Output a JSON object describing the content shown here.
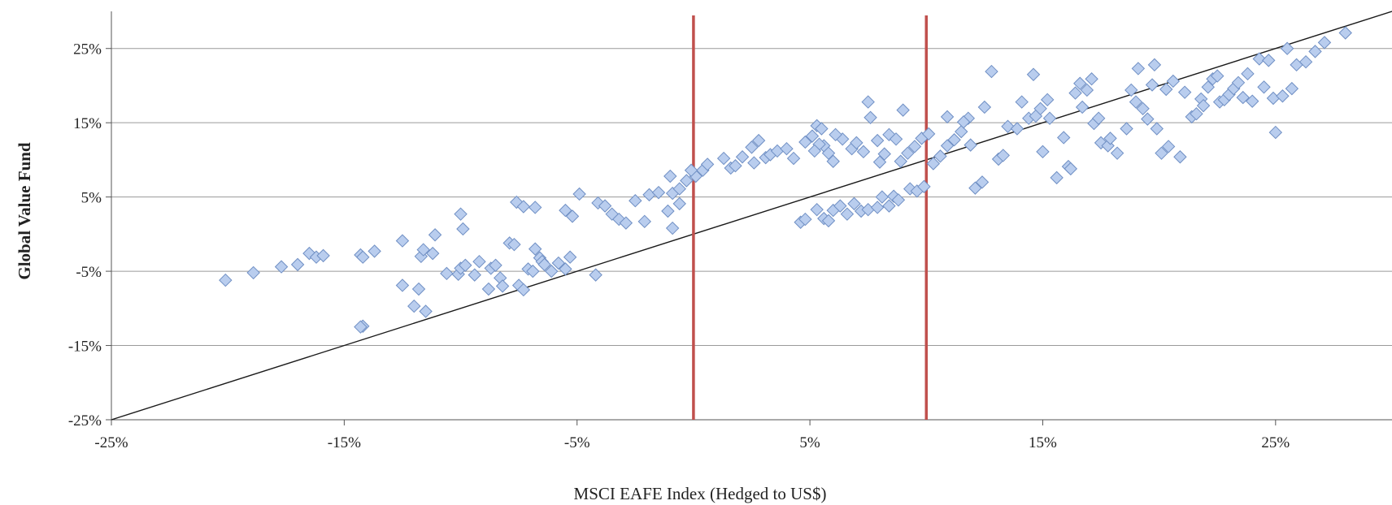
{
  "chart_data": {
    "type": "scatter",
    "xlabel": "MSCI EAFE Index (Hedged to US$)",
    "ylabel": "Global Value Fund",
    "xlim": [
      -25,
      30
    ],
    "ylim": [
      -25,
      30
    ],
    "grid": "horizontal",
    "x_ticks": [
      -25,
      -15,
      -5,
      5,
      15,
      25
    ],
    "x_tick_labels": [
      "-25%",
      "-15%",
      "-5%",
      "5%",
      "15%",
      "25%"
    ],
    "y_ticks": [
      -25,
      -15,
      -5,
      5,
      15,
      25
    ],
    "y_tick_labels": [
      "-25%",
      "-15%",
      "-5%",
      "5%",
      "15%",
      "25%"
    ],
    "colors": {
      "marker_fill": "#b9cdee",
      "marker_stroke": "#6f8fc4",
      "vertical_line": "#c0504d",
      "reference_line": "#1a1a1a",
      "grid": "#9a9a9a"
    },
    "reference_line": {
      "x": [
        -25,
        30
      ],
      "y": [
        -25,
        30
      ]
    },
    "vertical_lines": [
      0,
      10
    ],
    "points": [
      [
        -20.1,
        -6.2
      ],
      [
        -18.9,
        -5.2
      ],
      [
        -17.7,
        -4.4
      ],
      [
        -17.0,
        -4.1
      ],
      [
        -16.5,
        -2.6
      ],
      [
        -16.2,
        -3.1
      ],
      [
        -15.9,
        -2.9
      ],
      [
        -14.3,
        -2.8
      ],
      [
        -14.2,
        -3.1
      ],
      [
        -13.7,
        -2.3
      ],
      [
        -14.2,
        -12.4
      ],
      [
        -14.3,
        -12.5
      ],
      [
        -12.5,
        -0.9
      ],
      [
        -12.5,
        -6.9
      ],
      [
        -12.0,
        -9.7
      ],
      [
        -11.8,
        -7.4
      ],
      [
        -11.7,
        -3.0
      ],
      [
        -11.6,
        -2.1
      ],
      [
        -11.5,
        -10.4
      ],
      [
        -11.2,
        -2.6
      ],
      [
        -11.1,
        -0.1
      ],
      [
        -10.6,
        -5.3
      ],
      [
        -10.1,
        -5.4
      ],
      [
        -10.0,
        -4.6
      ],
      [
        -9.8,
        -4.2
      ],
      [
        -10.0,
        2.7
      ],
      [
        -9.9,
        0.7
      ],
      [
        -9.4,
        -5.5
      ],
      [
        -9.2,
        -3.7
      ],
      [
        -8.8,
        -7.4
      ],
      [
        -8.7,
        -4.6
      ],
      [
        -8.5,
        -4.2
      ],
      [
        -8.3,
        -5.9
      ],
      [
        -8.2,
        -7.0
      ],
      [
        -7.9,
        -1.2
      ],
      [
        -7.7,
        -1.4
      ],
      [
        -7.5,
        -6.9
      ],
      [
        -7.3,
        -7.5
      ],
      [
        -7.1,
        -4.7
      ],
      [
        -6.9,
        -5.0
      ],
      [
        -6.8,
        -2.0
      ],
      [
        -6.6,
        -3.2
      ],
      [
        -6.5,
        -3.7
      ],
      [
        -6.4,
        -4.1
      ],
      [
        -6.1,
        -5.0
      ],
      [
        -5.8,
        -3.9
      ],
      [
        -5.5,
        -4.7
      ],
      [
        -5.3,
        -3.1
      ],
      [
        -7.6,
        4.3
      ],
      [
        -7.3,
        3.7
      ],
      [
        -6.8,
        3.6
      ],
      [
        -5.5,
        3.2
      ],
      [
        -5.2,
        2.4
      ],
      [
        -4.9,
        5.4
      ],
      [
        -4.2,
        -5.5
      ],
      [
        -4.1,
        4.2
      ],
      [
        -3.8,
        3.8
      ],
      [
        -3.5,
        2.7
      ],
      [
        -3.2,
        2.0
      ],
      [
        -2.9,
        1.5
      ],
      [
        -2.5,
        4.5
      ],
      [
        -2.1,
        1.7
      ],
      [
        -1.9,
        5.3
      ],
      [
        -1.5,
        5.6
      ],
      [
        -0.9,
        5.5
      ],
      [
        -0.6,
        4.1
      ],
      [
        -1.0,
        7.8
      ],
      [
        -0.3,
        7.2
      ],
      [
        0.1,
        7.8
      ],
      [
        0.4,
        8.6
      ],
      [
        -0.9,
        0.8
      ],
      [
        -1.1,
        3.1
      ],
      [
        -0.6,
        6.1
      ],
      [
        -0.1,
        8.6
      ],
      [
        0.6,
        9.4
      ],
      [
        1.3,
        10.2
      ],
      [
        1.6,
        8.9
      ],
      [
        1.8,
        9.2
      ],
      [
        2.1,
        10.4
      ],
      [
        2.5,
        11.7
      ],
      [
        2.6,
        9.6
      ],
      [
        2.8,
        12.6
      ],
      [
        3.1,
        10.3
      ],
      [
        3.3,
        10.7
      ],
      [
        3.6,
        11.2
      ],
      [
        4.0,
        11.5
      ],
      [
        4.3,
        10.2
      ],
      [
        4.8,
        12.4
      ],
      [
        5.1,
        13.2
      ],
      [
        5.3,
        14.6
      ],
      [
        5.6,
        11.9
      ],
      [
        5.4,
        12.1
      ],
      [
        5.8,
        10.9
      ],
      [
        6.0,
        9.8
      ],
      [
        6.4,
        12.8
      ],
      [
        6.8,
        11.5
      ],
      [
        7.0,
        12.3
      ],
      [
        7.3,
        11.1
      ],
      [
        7.6,
        15.7
      ],
      [
        7.5,
        17.8
      ],
      [
        7.9,
        12.6
      ],
      [
        8.0,
        9.7
      ],
      [
        8.2,
        10.8
      ],
      [
        8.4,
        13.4
      ],
      [
        8.7,
        12.8
      ],
      [
        8.9,
        9.8
      ],
      [
        9.2,
        10.9
      ],
      [
        9.5,
        11.8
      ],
      [
        9.8,
        12.9
      ],
      [
        10.1,
        13.5
      ],
      [
        10.3,
        9.5
      ],
      [
        10.6,
        10.5
      ],
      [
        10.9,
        11.9
      ],
      [
        11.2,
        12.7
      ],
      [
        11.5,
        13.8
      ],
      [
        11.8,
        15.6
      ],
      [
        9.0,
        16.7
      ],
      [
        10.9,
        15.8
      ],
      [
        11.6,
        15.1
      ],
      [
        4.6,
        1.6
      ],
      [
        4.8,
        2.0
      ],
      [
        5.3,
        3.3
      ],
      [
        5.6,
        2.1
      ],
      [
        5.8,
        1.8
      ],
      [
        6.0,
        3.2
      ],
      [
        6.3,
        3.8
      ],
      [
        6.6,
        2.7
      ],
      [
        6.9,
        4.1
      ],
      [
        7.2,
        3.1
      ],
      [
        7.5,
        3.3
      ],
      [
        7.9,
        3.6
      ],
      [
        8.1,
        5.0
      ],
      [
        8.4,
        3.8
      ],
      [
        8.6,
        5.1
      ],
      [
        8.8,
        4.6
      ],
      [
        9.3,
        6.1
      ],
      [
        9.6,
        5.8
      ],
      [
        9.9,
        6.4
      ],
      [
        5.2,
        11.2
      ],
      [
        5.5,
        14.2
      ],
      [
        6.1,
        13.4
      ],
      [
        11.9,
        12.0
      ],
      [
        12.1,
        6.2
      ],
      [
        12.4,
        7.0
      ],
      [
        12.5,
        17.1
      ],
      [
        12.8,
        21.9
      ],
      [
        13.1,
        10.1
      ],
      [
        13.3,
        10.6
      ],
      [
        13.5,
        14.5
      ],
      [
        13.9,
        14.2
      ],
      [
        14.1,
        17.8
      ],
      [
        14.4,
        15.6
      ],
      [
        14.6,
        21.5
      ],
      [
        14.7,
        15.9
      ],
      [
        14.9,
        16.9
      ],
      [
        15.2,
        18.1
      ],
      [
        15.3,
        15.6
      ],
      [
        15.0,
        11.1
      ],
      [
        15.6,
        7.6
      ],
      [
        15.9,
        13.0
      ],
      [
        16.1,
        9.1
      ],
      [
        16.2,
        8.8
      ],
      [
        16.4,
        19.0
      ],
      [
        16.6,
        20.3
      ],
      [
        16.7,
        17.1
      ],
      [
        16.9,
        19.4
      ],
      [
        17.1,
        20.9
      ],
      [
        17.2,
        14.9
      ],
      [
        17.4,
        15.6
      ],
      [
        17.5,
        12.3
      ],
      [
        17.8,
        11.9
      ],
      [
        17.9,
        12.9
      ],
      [
        18.2,
        10.9
      ],
      [
        18.6,
        14.2
      ],
      [
        18.8,
        19.4
      ],
      [
        19.0,
        17.8
      ],
      [
        19.1,
        22.3
      ],
      [
        19.3,
        16.9
      ],
      [
        19.5,
        15.5
      ],
      [
        19.7,
        20.1
      ],
      [
        19.8,
        22.8
      ],
      [
        19.9,
        14.2
      ],
      [
        20.1,
        10.9
      ],
      [
        20.3,
        19.5
      ],
      [
        20.4,
        11.8
      ],
      [
        20.6,
        20.6
      ],
      [
        20.9,
        10.4
      ],
      [
        21.1,
        19.1
      ],
      [
        21.4,
        15.8
      ],
      [
        21.6,
        16.2
      ],
      [
        21.8,
        18.2
      ],
      [
        21.9,
        17.3
      ],
      [
        22.1,
        19.8
      ],
      [
        22.3,
        20.9
      ],
      [
        22.5,
        21.3
      ],
      [
        22.6,
        17.8
      ],
      [
        22.8,
        18.1
      ],
      [
        23.0,
        18.8
      ],
      [
        23.2,
        19.6
      ],
      [
        23.4,
        20.4
      ],
      [
        23.6,
        18.4
      ],
      [
        23.8,
        21.6
      ],
      [
        24.0,
        17.9
      ],
      [
        24.3,
        23.6
      ],
      [
        24.5,
        19.8
      ],
      [
        24.7,
        23.4
      ],
      [
        24.9,
        18.3
      ],
      [
        25.0,
        13.7
      ],
      [
        25.3,
        18.6
      ],
      [
        25.5,
        25.0
      ],
      [
        25.7,
        19.6
      ],
      [
        25.9,
        22.8
      ],
      [
        26.3,
        23.2
      ],
      [
        26.7,
        24.6
      ],
      [
        27.1,
        25.8
      ],
      [
        28.0,
        27.1
      ]
    ]
  }
}
